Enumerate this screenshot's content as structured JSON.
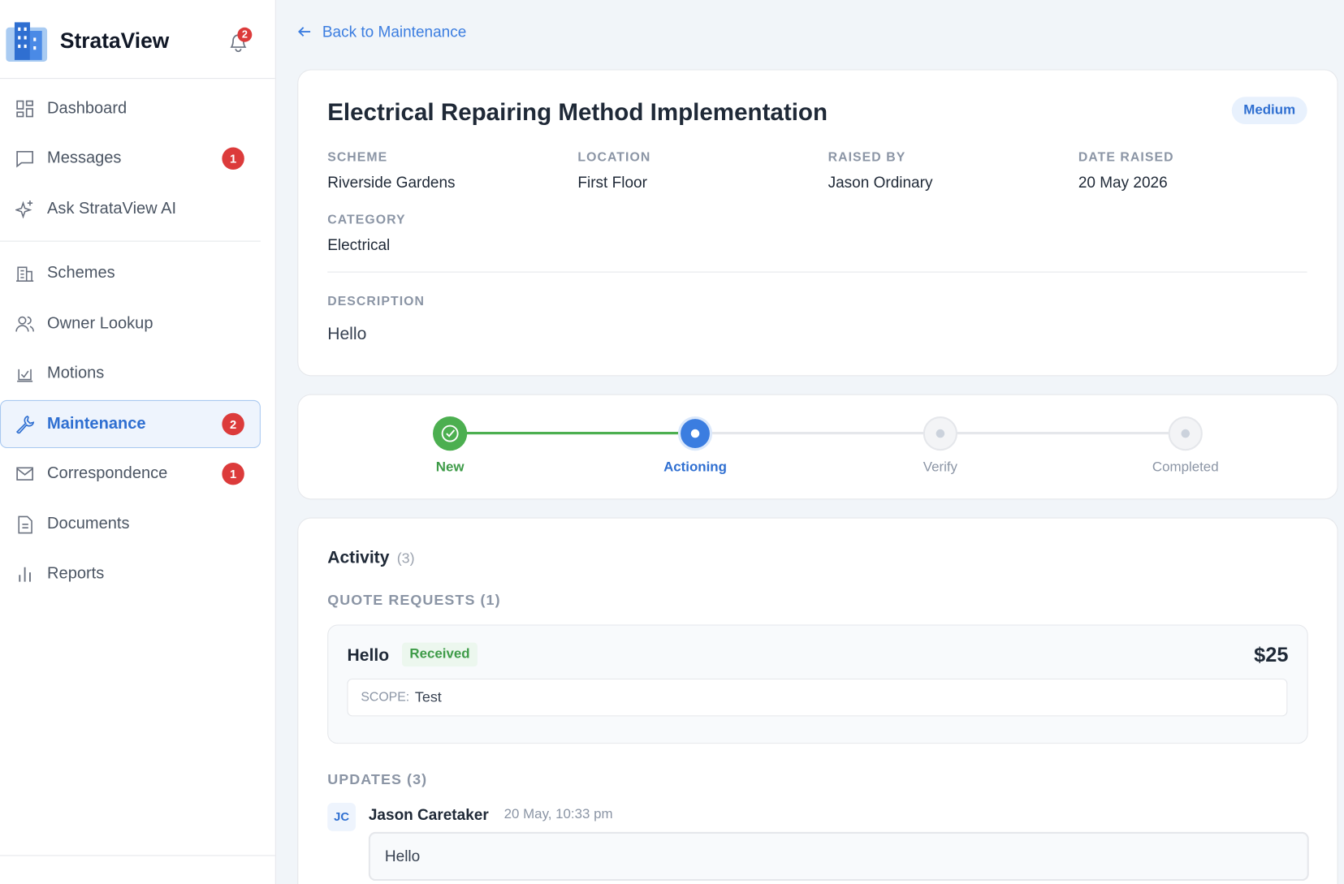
{
  "sidebar": {
    "brand": "StrataView",
    "notification_count": 2,
    "nav_primary": [
      {
        "label": "Dashboard"
      },
      {
        "label": "Messages",
        "badge": 1
      },
      {
        "label": "Ask StrataView AI"
      }
    ],
    "nav_secondary": [
      {
        "label": "Schemes"
      },
      {
        "label": "Owner Lookup"
      },
      {
        "label": "Motions"
      },
      {
        "label": "Maintenance",
        "badge": 2
      },
      {
        "label": "Correspondence",
        "badge": 1
      },
      {
        "label": "Documents"
      },
      {
        "label": "Reports"
      }
    ]
  },
  "back_link": "Back to Maintenance",
  "details": {
    "title": "Electrical Repairing Method Implementation",
    "priority": "Medium",
    "fields": [
      {
        "label": "SCHEME",
        "value": "Riverside Gardens"
      },
      {
        "label": "LOCATION",
        "value": "First Floor"
      },
      {
        "label": "RAISED BY",
        "value": "Jason Ordinary"
      },
      {
        "label": "DATE RAISED",
        "value": "20 May 2026"
      },
      {
        "label": "CATEGORY",
        "value": "Electrical"
      }
    ],
    "description_label": "DESCRIPTION",
    "description": "Hello"
  },
  "progress": {
    "steps": [
      "New",
      "Actioning",
      "Verify",
      "Completed"
    ]
  },
  "activity": {
    "title": "Activity",
    "count": "(3)",
    "quotes_label": "QUOTE REQUESTS (1)",
    "quote": {
      "title": "Hello",
      "status": "Received",
      "amount": "$25",
      "scope_label": "SCOPE:",
      "scope": "Test"
    },
    "updates_label": "UPDATES (3)",
    "update": {
      "initials": "JC",
      "author": "Jason Caretaker",
      "time": "20 May, 10:33 pm",
      "text": "Hello"
    }
  }
}
